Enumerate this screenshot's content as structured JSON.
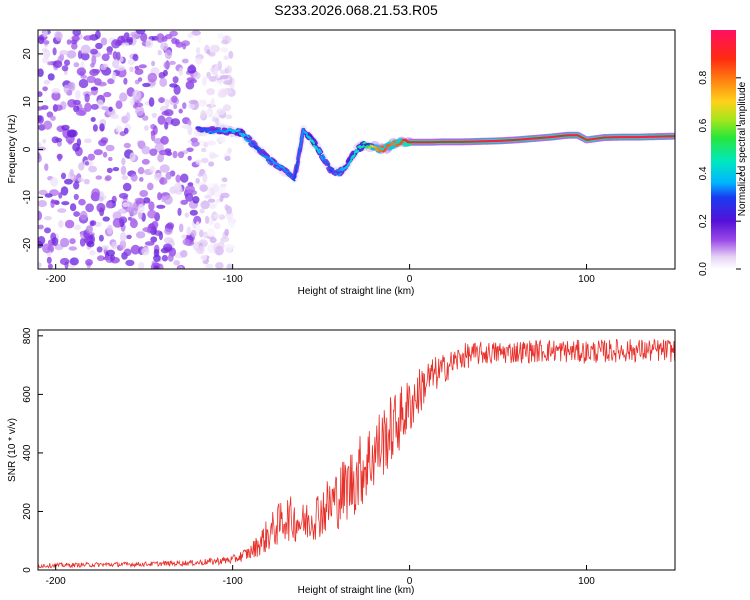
{
  "title": "S233.2026.068.21.53.R05",
  "chart_data": [
    {
      "type": "heatmap",
      "xlabel": "Height of straight line (km)",
      "ylabel": "Frequency (Hz)",
      "xlim": [
        -210,
        150
      ],
      "ylim": [
        -25,
        25
      ],
      "xticks": [
        -200,
        -100,
        0,
        100
      ],
      "xtick_labels": [
        "-200",
        "-100",
        "0",
        "100"
      ],
      "yticks": [
        -20,
        -10,
        0,
        10,
        20
      ],
      "ytick_labels": [
        "-20",
        "-10",
        "0",
        "10",
        "20"
      ],
      "colorbar": {
        "label": "Normalized spectral amplitude",
        "range": [
          0,
          1
        ],
        "ticks": [
          0,
          0.2,
          0.4,
          0.6,
          0.8
        ],
        "tick_labels": [
          "0.0",
          "0.2",
          "0.4",
          "0.6",
          "0.8"
        ]
      },
      "ridge": {
        "x": [
          -120,
          -105,
          -95,
          -88,
          -80,
          -72,
          -65,
          -60,
          -55,
          -50,
          -45,
          -40,
          -35,
          -30,
          -25,
          -20,
          -15,
          -10,
          -5,
          0,
          10,
          20,
          30,
          40,
          50,
          60,
          70,
          80,
          90,
          95,
          100,
          110,
          120,
          130,
          140,
          150
        ],
        "freq": [
          4,
          4,
          3.5,
          1,
          -2,
          -4,
          -6,
          4,
          2,
          -1,
          -4,
          -5,
          -3,
          0,
          1,
          0.5,
          0,
          1,
          1.5,
          1.5,
          1.5,
          1.6,
          1.6,
          1.7,
          1.8,
          2.0,
          2.3,
          2.6,
          3.0,
          3.0,
          2.0,
          2.5,
          2.6,
          2.6,
          2.7,
          2.8
        ],
        "amplitude": [
          0.3,
          0.35,
          0.4,
          0.3,
          0.35,
          0.35,
          0.3,
          0.35,
          0.45,
          0.35,
          0.3,
          0.35,
          0.4,
          0.45,
          0.5,
          0.75,
          0.85,
          0.8,
          0.85,
          0.95,
          0.95,
          0.95,
          0.95,
          0.95,
          0.95,
          0.95,
          0.95,
          0.95,
          0.95,
          0.95,
          0.9,
          0.95,
          0.95,
          0.95,
          0.95,
          0.95
        ]
      },
      "noise_region_x": [
        -210,
        -120
      ],
      "noise_amplitude": 0.1
    },
    {
      "type": "line",
      "xlabel": "Height of straight line (km)",
      "ylabel": "SNR (10 * v/v)",
      "xlim": [
        -210,
        150
      ],
      "ylim": [
        0,
        820
      ],
      "xticks": [
        -200,
        -100,
        0,
        100
      ],
      "xtick_labels": [
        "-200",
        "-100",
        "0",
        "100"
      ],
      "yticks": [
        0,
        200,
        400,
        600,
        800
      ],
      "ytick_labels": [
        "0",
        "200",
        "400",
        "600",
        "800"
      ],
      "color": "#e8302a",
      "x": [
        -210,
        -180,
        -150,
        -120,
        -100,
        -90,
        -80,
        -70,
        -60,
        -50,
        -40,
        -30,
        -20,
        -10,
        0,
        10,
        20,
        30,
        40,
        60,
        80,
        100,
        120,
        150
      ],
      "y": [
        15,
        18,
        20,
        25,
        35,
        60,
        120,
        180,
        160,
        200,
        250,
        320,
        400,
        480,
        560,
        650,
        690,
        730,
        740,
        745,
        750,
        745,
        750,
        750
      ],
      "noise": [
        8,
        8,
        8,
        10,
        15,
        25,
        60,
        80,
        70,
        90,
        110,
        130,
        130,
        120,
        100,
        70,
        50,
        45,
        40,
        40,
        40,
        40,
        40,
        40
      ]
    }
  ]
}
